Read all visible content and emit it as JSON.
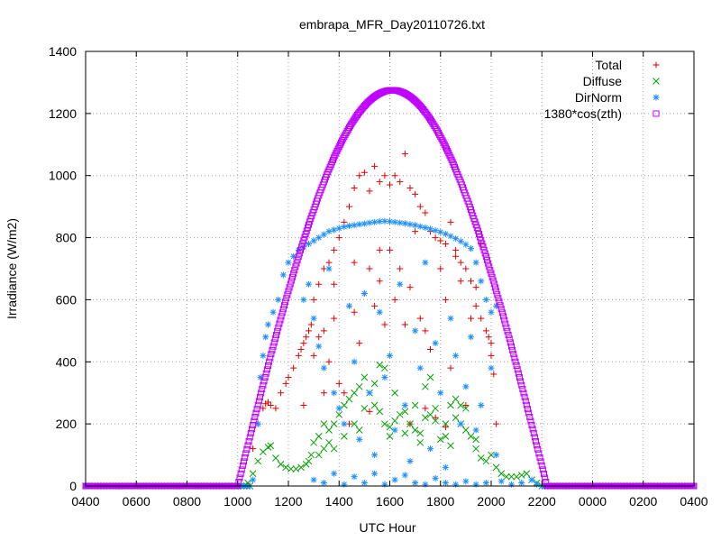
{
  "chart_data": {
    "type": "scatter",
    "title": "embrapa_MFR_Day20110726.txt",
    "xlabel": "UTC Hour",
    "ylabel": "Irradiance (W/m2)",
    "xlim": [
      4,
      28
    ],
    "ylim": [
      0,
      1400
    ],
    "grid": true,
    "legend_position": "top-right",
    "x_ticks": [
      {
        "value": 4,
        "label": "0400"
      },
      {
        "value": 6,
        "label": "0600"
      },
      {
        "value": 8,
        "label": "0800"
      },
      {
        "value": 10,
        "label": "1000"
      },
      {
        "value": 12,
        "label": "1200"
      },
      {
        "value": 14,
        "label": "1400"
      },
      {
        "value": 16,
        "label": "1600"
      },
      {
        "value": 18,
        "label": "1800"
      },
      {
        "value": 20,
        "label": "2000"
      },
      {
        "value": 22,
        "label": "2200"
      },
      {
        "value": 24,
        "label": "0000"
      },
      {
        "value": 26,
        "label": "0200"
      },
      {
        "value": 28,
        "label": "0400"
      }
    ],
    "y_ticks": [
      0,
      200,
      400,
      600,
      800,
      1000,
      1200,
      1400
    ],
    "series": [
      {
        "name": "Total",
        "marker": "+",
        "color": "#e00000",
        "points": [
          [
            10.6,
            120
          ],
          [
            10.8,
            200
          ],
          [
            11.0,
            250
          ],
          [
            11.1,
            265
          ],
          [
            11.2,
            270
          ],
          [
            11.3,
            260
          ],
          [
            11.5,
            250
          ],
          [
            11.7,
            300
          ],
          [
            11.9,
            330
          ],
          [
            12.0,
            350
          ],
          [
            12.2,
            380
          ],
          [
            12.4,
            420
          ],
          [
            12.5,
            440
          ],
          [
            12.6,
            460
          ],
          [
            12.7,
            480
          ],
          [
            12.8,
            500
          ],
          [
            12.9,
            520
          ],
          [
            13.0,
            600
          ],
          [
            13.2,
            650
          ],
          [
            13.4,
            700
          ],
          [
            13.6,
            720
          ],
          [
            13.8,
            760
          ],
          [
            14.0,
            800
          ],
          [
            14.2,
            850
          ],
          [
            14.4,
            900
          ],
          [
            14.6,
            960
          ],
          [
            14.8,
            1000
          ],
          [
            15.0,
            1010
          ],
          [
            15.2,
            950
          ],
          [
            15.4,
            1030
          ],
          [
            15.6,
            980
          ],
          [
            15.8,
            1000
          ],
          [
            16.0,
            970
          ],
          [
            16.2,
            1000
          ],
          [
            16.4,
            980
          ],
          [
            16.6,
            1070
          ],
          [
            16.8,
            960
          ],
          [
            17.0,
            940
          ],
          [
            17.2,
            900
          ],
          [
            17.4,
            880
          ],
          [
            17.6,
            820
          ],
          [
            17.8,
            800
          ],
          [
            18.0,
            790
          ],
          [
            18.2,
            780
          ],
          [
            18.4,
            850
          ],
          [
            18.6,
            760
          ],
          [
            18.8,
            720
          ],
          [
            19.0,
            700
          ],
          [
            19.2,
            660
          ],
          [
            19.4,
            640
          ],
          [
            19.6,
            540
          ],
          [
            19.8,
            500
          ],
          [
            19.9,
            480
          ],
          [
            20.0,
            460
          ],
          [
            13.0,
            420
          ],
          [
            13.2,
            480
          ],
          [
            13.4,
            500
          ],
          [
            13.6,
            400
          ],
          [
            13.8,
            540
          ],
          [
            14.2,
            300
          ],
          [
            14.4,
            200
          ],
          [
            14.6,
            560
          ],
          [
            14.8,
            460
          ],
          [
            15.0,
            620
          ],
          [
            15.2,
            700
          ],
          [
            15.4,
            580
          ],
          [
            15.6,
            660
          ],
          [
            15.8,
            520
          ],
          [
            16.0,
            760
          ],
          [
            16.4,
            700
          ],
          [
            16.6,
            520
          ],
          [
            16.8,
            640
          ],
          [
            17.0,
            820
          ],
          [
            17.2,
            540
          ],
          [
            17.4,
            500
          ],
          [
            17.6,
            440
          ],
          [
            17.8,
            220
          ],
          [
            18.0,
            700
          ],
          [
            18.2,
            600
          ],
          [
            18.4,
            380
          ],
          [
            18.6,
            740
          ],
          [
            18.8,
            660
          ],
          [
            19.0,
            260
          ],
          [
            19.2,
            540
          ],
          [
            19.4,
            580
          ],
          [
            19.6,
            780
          ],
          [
            20.0,
            420
          ],
          [
            20.1,
            360
          ],
          [
            20.2,
            200
          ],
          [
            12.6,
            260
          ],
          [
            13.4,
            300
          ],
          [
            14.0,
            330
          ],
          [
            15.2,
            240
          ],
          [
            16.8,
            200
          ],
          [
            17.4,
            250
          ],
          [
            18.2,
            190
          ],
          [
            13.8,
            650
          ],
          [
            14.6,
            720
          ],
          [
            15.6,
            760
          ],
          [
            16.2,
            600
          ]
        ]
      },
      {
        "name": "Diffuse",
        "marker": "x",
        "color": "#00a000",
        "points": [
          [
            10.4,
            10
          ],
          [
            10.6,
            40
          ],
          [
            10.8,
            80
          ],
          [
            11.0,
            110
          ],
          [
            11.2,
            125
          ],
          [
            11.3,
            130
          ],
          [
            11.5,
            90
          ],
          [
            11.7,
            70
          ],
          [
            11.9,
            60
          ],
          [
            12.1,
            55
          ],
          [
            12.3,
            55
          ],
          [
            12.5,
            60
          ],
          [
            12.7,
            70
          ],
          [
            12.9,
            100
          ],
          [
            13.0,
            140
          ],
          [
            13.2,
            160
          ],
          [
            13.4,
            120
          ],
          [
            13.6,
            180
          ],
          [
            13.8,
            200
          ],
          [
            14.0,
            230
          ],
          [
            14.2,
            260
          ],
          [
            14.4,
            280
          ],
          [
            14.6,
            300
          ],
          [
            14.8,
            320
          ],
          [
            15.0,
            350
          ],
          [
            15.2,
            300
          ],
          [
            15.4,
            260
          ],
          [
            15.6,
            240
          ],
          [
            15.8,
            200
          ],
          [
            16.0,
            190
          ],
          [
            16.2,
            210
          ],
          [
            16.4,
            230
          ],
          [
            16.6,
            240
          ],
          [
            16.8,
            200
          ],
          [
            17.0,
            180
          ],
          [
            17.2,
            170
          ],
          [
            17.4,
            220
          ],
          [
            17.6,
            230
          ],
          [
            17.8,
            210
          ],
          [
            18.0,
            150
          ],
          [
            18.2,
            160
          ],
          [
            18.4,
            260
          ],
          [
            18.6,
            220
          ],
          [
            18.8,
            200
          ],
          [
            19.0,
            180
          ],
          [
            19.2,
            160
          ],
          [
            19.4,
            120
          ],
          [
            19.6,
            90
          ],
          [
            19.8,
            80
          ],
          [
            20.0,
            100
          ],
          [
            20.2,
            60
          ],
          [
            20.4,
            40
          ],
          [
            20.6,
            30
          ],
          [
            20.8,
            30
          ],
          [
            21.0,
            30
          ],
          [
            21.2,
            35
          ],
          [
            21.4,
            40
          ],
          [
            21.6,
            20
          ],
          [
            21.8,
            10
          ],
          [
            13.2,
            100
          ],
          [
            13.6,
            140
          ],
          [
            14.2,
            160
          ],
          [
            14.6,
            200
          ],
          [
            15.0,
            250
          ],
          [
            15.4,
            330
          ],
          [
            15.8,
            380
          ],
          [
            16.2,
            300
          ],
          [
            16.6,
            170
          ],
          [
            17.0,
            260
          ],
          [
            17.4,
            320
          ],
          [
            17.8,
            250
          ],
          [
            18.2,
            200
          ],
          [
            18.6,
            280
          ],
          [
            19.0,
            250
          ],
          [
            13.8,
            120
          ],
          [
            14.8,
            180
          ],
          [
            16.0,
            160
          ],
          [
            17.2,
            140
          ],
          [
            18.4,
            130
          ],
          [
            19.4,
            150
          ],
          [
            12.8,
            80
          ],
          [
            13.4,
            200
          ],
          [
            15.6,
            390
          ],
          [
            17.6,
            350
          ],
          [
            18.8,
            260
          ]
        ]
      },
      {
        "name": "DirNorm",
        "marker": "*",
        "color": "#1e90ff",
        "points": [
          [
            10.6,
            20
          ],
          [
            10.8,
            200
          ],
          [
            10.9,
            350
          ],
          [
            11.0,
            420
          ],
          [
            11.1,
            480
          ],
          [
            11.2,
            520
          ],
          [
            11.4,
            560
          ],
          [
            11.6,
            600
          ],
          [
            11.8,
            680
          ],
          [
            12.0,
            720
          ],
          [
            12.2,
            740
          ],
          [
            12.4,
            760
          ],
          [
            12.6,
            770
          ],
          [
            12.8,
            780
          ],
          [
            13.0,
            790
          ],
          [
            13.2,
            800
          ],
          [
            13.4,
            810
          ],
          [
            13.6,
            820
          ],
          [
            13.8,
            825
          ],
          [
            14.0,
            830
          ],
          [
            14.2,
            835
          ],
          [
            14.4,
            838
          ],
          [
            14.6,
            840
          ],
          [
            14.8,
            843
          ],
          [
            15.0,
            845
          ],
          [
            15.2,
            848
          ],
          [
            15.4,
            850
          ],
          [
            15.6,
            852
          ],
          [
            15.8,
            853
          ],
          [
            16.0,
            852
          ],
          [
            16.2,
            850
          ],
          [
            16.4,
            848
          ],
          [
            16.6,
            846
          ],
          [
            16.8,
            843
          ],
          [
            17.0,
            840
          ],
          [
            17.2,
            836
          ],
          [
            17.4,
            832
          ],
          [
            17.6,
            828
          ],
          [
            17.8,
            823
          ],
          [
            18.0,
            818
          ],
          [
            18.2,
            812
          ],
          [
            18.4,
            805
          ],
          [
            18.6,
            797
          ],
          [
            18.8,
            788
          ],
          [
            19.0,
            778
          ],
          [
            19.2,
            765
          ],
          [
            19.4,
            720
          ],
          [
            19.6,
            660
          ],
          [
            19.8,
            600
          ],
          [
            20.0,
            560
          ],
          [
            20.2,
            580
          ],
          [
            12.6,
            600
          ],
          [
            12.8,
            650
          ],
          [
            13.0,
            540
          ],
          [
            13.2,
            450
          ],
          [
            13.4,
            380
          ],
          [
            13.6,
            700
          ],
          [
            13.8,
            300
          ],
          [
            14.0,
            250
          ],
          [
            14.2,
            200
          ],
          [
            14.4,
            580
          ],
          [
            14.6,
            400
          ],
          [
            14.8,
            150
          ],
          [
            15.0,
            620
          ],
          [
            15.2,
            300
          ],
          [
            15.4,
            100
          ],
          [
            15.6,
            560
          ],
          [
            15.8,
            350
          ],
          [
            16.0,
            420
          ],
          [
            16.2,
            180
          ],
          [
            16.4,
            650
          ],
          [
            16.6,
            260
          ],
          [
            16.8,
            80
          ],
          [
            17.0,
            500
          ],
          [
            17.2,
            380
          ],
          [
            17.4,
            720
          ],
          [
            17.6,
            120
          ],
          [
            17.8,
            460
          ],
          [
            18.0,
            300
          ],
          [
            18.2,
            60
          ],
          [
            18.4,
            540
          ],
          [
            18.6,
            420
          ],
          [
            18.8,
            200
          ],
          [
            19.0,
            320
          ],
          [
            19.2,
            480
          ],
          [
            19.4,
            180
          ],
          [
            19.6,
            260
          ],
          [
            20.0,
            380
          ],
          [
            20.2,
            100
          ],
          [
            13.0,
            20
          ],
          [
            13.4,
            10
          ],
          [
            13.8,
            40
          ],
          [
            14.2,
            5
          ],
          [
            14.6,
            30
          ],
          [
            15.0,
            10
          ],
          [
            15.4,
            40
          ],
          [
            15.8,
            5
          ],
          [
            16.2,
            20
          ],
          [
            16.6,
            35
          ],
          [
            17.0,
            10
          ],
          [
            17.4,
            5
          ],
          [
            17.8,
            25
          ],
          [
            18.2,
            10
          ],
          [
            18.6,
            5
          ],
          [
            19.0,
            15
          ],
          [
            19.4,
            5
          ],
          [
            19.8,
            10
          ],
          [
            20.4,
            15
          ],
          [
            20.8,
            5
          ],
          [
            21.2,
            10
          ],
          [
            21.6,
            20
          ],
          [
            21.8,
            5
          ]
        ]
      },
      {
        "name": "1380*cos(zth)",
        "marker": "square",
        "color": "#c000ff",
        "curve": {
          "start": 10.0,
          "end": 22.2,
          "peak_hour": 16.1,
          "peak_value": 1275
        }
      }
    ]
  }
}
